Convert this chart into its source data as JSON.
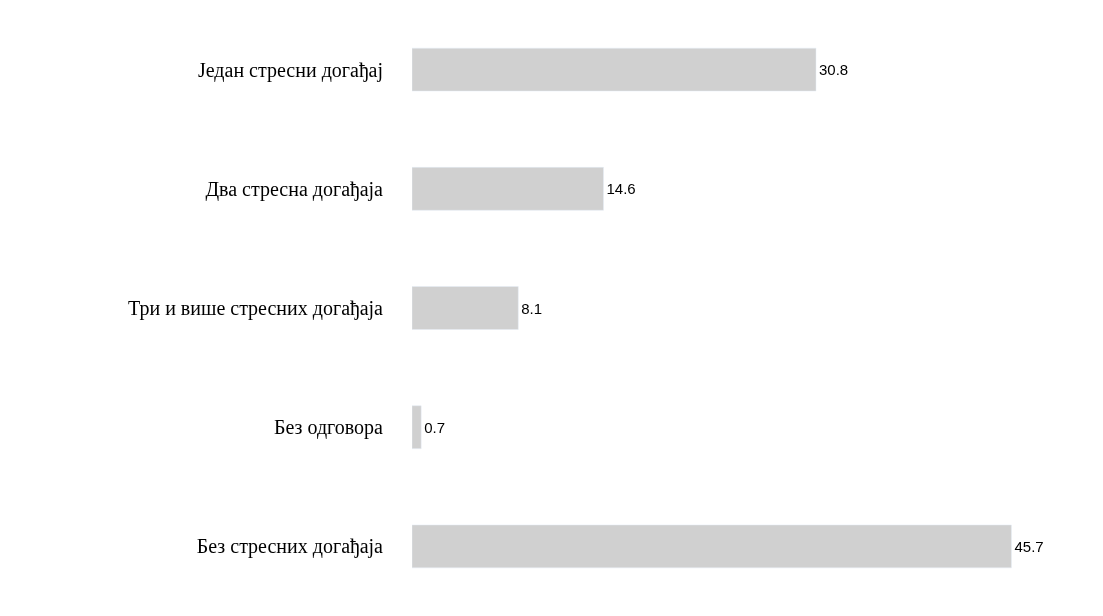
{
  "chart_data": {
    "type": "bar",
    "orientation": "horizontal",
    "categories": [
      "Један стресни догађај",
      "Два стресна догађаја",
      "Три и више стресних догађаја",
      "Без одговора",
      "Без стресних догађаја"
    ],
    "values": [
      30.8,
      14.6,
      8.1,
      0.7,
      45.7
    ],
    "color": "#d0d0d0",
    "data_labels": true
  }
}
